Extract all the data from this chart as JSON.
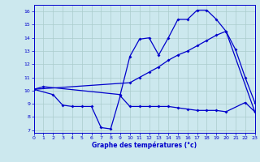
{
  "title": "Graphe des températures (°c)",
  "bg_color": "#cce8ee",
  "grid_color": "#aacccc",
  "line_color": "#0000cc",
  "x_ticks": [
    0,
    1,
    2,
    3,
    4,
    5,
    6,
    7,
    8,
    9,
    10,
    11,
    12,
    13,
    14,
    15,
    16,
    17,
    18,
    19,
    20,
    21,
    22,
    23
  ],
  "y_ticks": [
    7,
    8,
    9,
    10,
    11,
    12,
    13,
    14,
    15,
    16
  ],
  "xlim": [
    0,
    23
  ],
  "ylim": [
    6.8,
    16.5
  ],
  "series_max": {
    "x": [
      0,
      1,
      9,
      10,
      11,
      12,
      13,
      14,
      15,
      16,
      17,
      18,
      19,
      20,
      21,
      22,
      23
    ],
    "y": [
      10.1,
      10.3,
      9.7,
      12.6,
      13.9,
      14.0,
      12.7,
      14.0,
      15.4,
      15.4,
      16.1,
      16.1,
      15.4,
      14.5,
      13.1,
      11.0,
      9.1
    ]
  },
  "series_avg": {
    "x": [
      0,
      10,
      11,
      12,
      13,
      14,
      15,
      16,
      17,
      18,
      19,
      20,
      23
    ],
    "y": [
      10.1,
      10.6,
      11.0,
      11.4,
      11.8,
      12.3,
      12.7,
      13.0,
      13.4,
      13.8,
      14.2,
      14.5,
      8.4
    ]
  },
  "series_min": {
    "x": [
      0,
      2,
      3,
      4,
      5,
      6,
      7,
      8,
      9,
      10,
      11,
      12,
      13,
      14,
      15,
      16,
      17,
      18,
      19,
      20,
      22,
      23
    ],
    "y": [
      10.1,
      9.7,
      8.9,
      8.8,
      8.8,
      8.8,
      7.2,
      7.1,
      9.6,
      8.8,
      8.8,
      8.8,
      8.8,
      8.8,
      8.7,
      8.6,
      8.5,
      8.5,
      8.5,
      8.4,
      9.1,
      8.4
    ]
  }
}
